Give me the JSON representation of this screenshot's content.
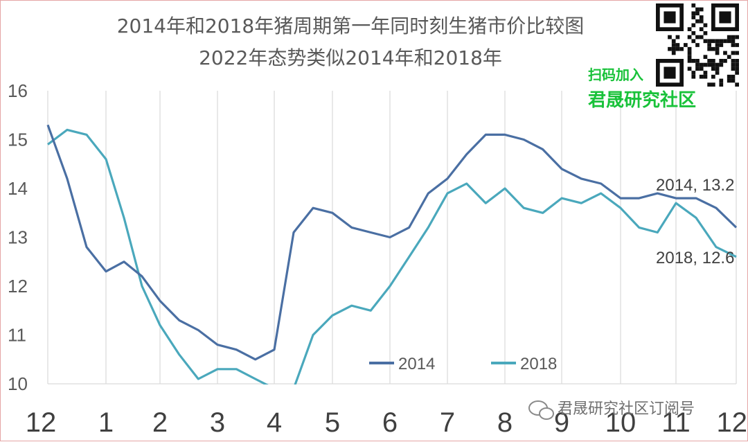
{
  "chart_data": {
    "type": "line",
    "title": "2014年和2018年猪周期第一年同时刻生猪市价比较图",
    "subtitle": "2022年态势类似2014年和2018年",
    "xlabel": "",
    "ylabel": "",
    "x_ticks": [
      "12",
      "1",
      "2",
      "3",
      "4",
      "5",
      "6",
      "7",
      "8",
      "9",
      "10",
      "11",
      "12"
    ],
    "ylim": [
      10,
      16
    ],
    "y_ticks": [
      "10",
      "11",
      "12",
      "13",
      "14",
      "15",
      "16"
    ],
    "grid": "vertical",
    "legend_position": "bottom-center",
    "series": [
      {
        "name": "2014",
        "color": "#4a6fa3",
        "values": [
          15.3,
          14.2,
          12.8,
          12.3,
          12.5,
          12.2,
          11.7,
          11.3,
          11.1,
          10.8,
          10.7,
          10.5,
          10.7,
          13.1,
          13.6,
          13.5,
          13.2,
          13.1,
          13.0,
          13.2,
          13.9,
          14.2,
          14.7,
          15.1,
          15.1,
          15.0,
          14.8,
          14.4,
          14.2,
          14.1,
          13.8,
          13.8,
          13.9,
          13.8,
          13.8,
          13.6,
          13.2
        ]
      },
      {
        "name": "2018",
        "color": "#4aa8bc",
        "values": [
          14.9,
          15.2,
          15.1,
          14.6,
          13.4,
          12.0,
          11.2,
          10.6,
          10.1,
          10.3,
          10.3,
          10.1,
          9.9,
          9.9,
          11.0,
          11.4,
          11.6,
          11.5,
          12.0,
          12.6,
          13.2,
          13.9,
          14.1,
          13.7,
          14.0,
          13.6,
          13.5,
          13.8,
          13.7,
          13.9,
          13.6,
          13.2,
          13.1,
          13.7,
          13.4,
          12.8,
          12.6
        ]
      }
    ],
    "annotations": [
      {
        "text": "2014, 13.2",
        "series": "2014"
      },
      {
        "text": "2018, 12.6",
        "series": "2018"
      }
    ]
  },
  "promo": {
    "scan_text": "扫码加入",
    "community_text": "君晟研究社区"
  },
  "watermark": {
    "text": "君晟研究社区订阅号"
  }
}
